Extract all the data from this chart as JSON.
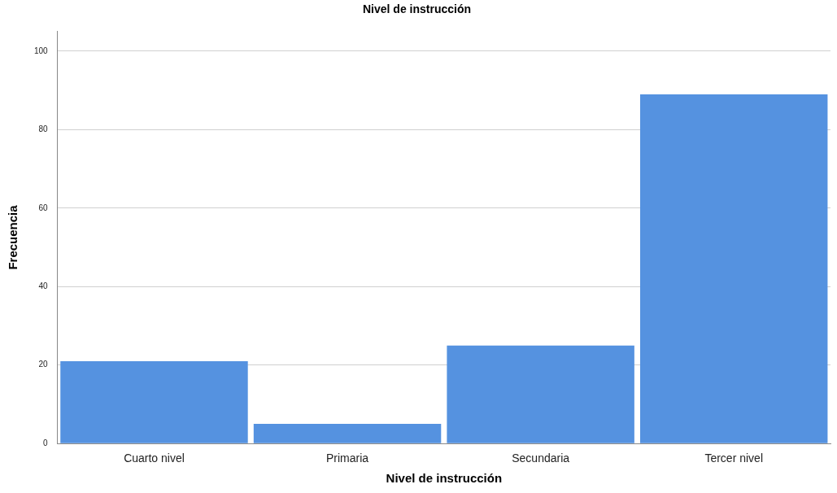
{
  "chart_data": {
    "type": "bar",
    "title": "Nivel de instrucción",
    "xlabel": "Nivel de instrucción",
    "ylabel": "Frecuencia",
    "categories": [
      "Cuarto nivel",
      "Primaria",
      "Secundaria",
      "Tercer nivel"
    ],
    "values": [
      21,
      5,
      25,
      89
    ],
    "color": "#5592e0",
    "ylim": [
      0,
      105
    ],
    "yticks": [
      0,
      20,
      40,
      60,
      80,
      100
    ],
    "grid": "y",
    "legend": false
  }
}
